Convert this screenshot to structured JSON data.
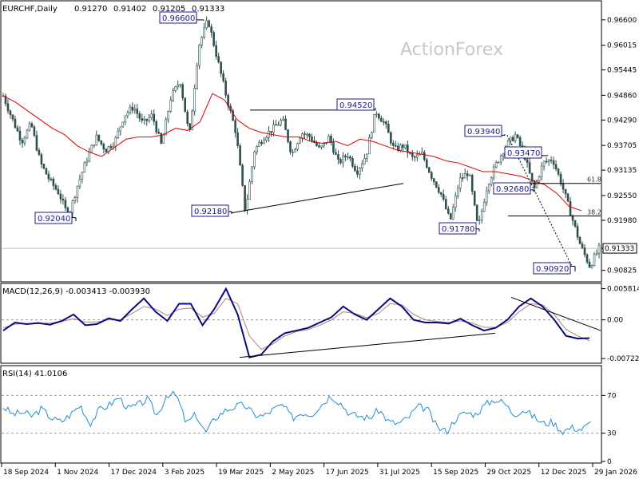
{
  "header": {
    "symbol": "EURCHF,Daily",
    "open": "0.91270",
    "high": "0.91402",
    "low": "0.91205",
    "close": "0.91333"
  },
  "watermark": "ActionForex",
  "colors": {
    "candle": "#2f4f4f",
    "ma": "#e00000",
    "macd": "#0a0a80",
    "signal": "#b08080",
    "rsi": "#1f8fd0",
    "box_border": "#1a1a8c",
    "frame": "#000000"
  },
  "chart_data": [
    {
      "type": "candlestick",
      "title": "EURCHF,Daily",
      "x_labels": [
        "18 Sep 2024",
        "1 Nov 2024",
        "17 Dec 2024",
        "3 Feb 2025",
        "19 Mar 2025",
        "2 May 2025",
        "17 Jun 2025",
        "31 Jul 2025",
        "15 Sep 2025",
        "29 Oct 2025",
        "12 Dec 2025",
        "29 Jan 2026"
      ],
      "y_ticks": [
        "0.96600",
        "0.96015",
        "0.95445",
        "0.94860",
        "0.94290",
        "0.93705",
        "0.93135",
        "0.92550",
        "0.91980",
        "0.91333",
        "0.90825"
      ],
      "ylim": [
        0.9058,
        0.9702
      ],
      "current_price": "0.91333",
      "series": [
        {
          "name": "price",
          "values": [
            0.9485,
            0.943,
            0.938,
            0.942,
            0.933,
            0.929,
            0.926,
            0.9205,
            0.928,
            0.934,
            0.939,
            0.936,
            0.938,
            0.944,
            0.946,
            0.942,
            0.944,
            0.937,
            0.948,
            0.952,
            0.939,
            0.96,
            0.966,
            0.957,
            0.948,
            0.94,
            0.9218,
            0.936,
            0.939,
            0.941,
            0.943,
            0.935,
            0.94,
            0.939,
            0.936,
            0.939,
            0.933,
            0.935,
            0.931,
            0.935,
            0.945,
            0.942,
            0.936,
            0.937,
            0.934,
            0.935,
            0.93,
            0.926,
            0.9195,
            0.929,
            0.931,
            0.9178,
            0.928,
            0.933,
            0.937,
            0.9394,
            0.9347,
            0.9268,
            0.933,
            0.934,
            0.928,
            0.921,
            0.914,
            0.9092,
            0.9133
          ]
        },
        {
          "name": "MA",
          "values": [
            0.9485,
            0.947,
            0.945,
            0.943,
            0.941,
            0.9395,
            0.937,
            0.9355,
            0.9345,
            0.9365,
            0.9385,
            0.939,
            0.939,
            0.9395,
            0.941,
            0.9405,
            0.9425,
            0.949,
            0.9475,
            0.943,
            0.941,
            0.94,
            0.9395,
            0.939,
            0.939,
            0.938,
            0.9375,
            0.938,
            0.937,
            0.9385,
            0.938,
            0.937,
            0.936,
            0.9355,
            0.935,
            0.9345,
            0.9335,
            0.933,
            0.932,
            0.931,
            0.931,
            0.9305,
            0.93,
            0.929,
            0.928,
            0.926,
            0.923,
            0.922
          ]
        }
      ],
      "annotations": [
        {
          "label": "0.96600",
          "price": 0.966
        },
        {
          "label": "0.92040",
          "price": 0.9204
        },
        {
          "label": "0.92180",
          "price": 0.9218
        },
        {
          "label": "0.94520",
          "price": 0.9452
        },
        {
          "label": "0.93940",
          "price": 0.9394
        },
        {
          "label": "0.93470",
          "price": 0.9347
        },
        {
          "label": "0.92680",
          "price": 0.9268
        },
        {
          "label": "0.91780",
          "price": 0.9178
        },
        {
          "label": "0.90920",
          "price": 0.9092
        }
      ],
      "fib_levels": [
        {
          "label": "61.8",
          "price": 0.9283
        },
        {
          "label": "38.2",
          "price": 0.9208
        }
      ]
    },
    {
      "type": "line",
      "title": "MACD(12,26,9) -0.003413 -0.003930",
      "y_ticks": [
        "0.005814",
        "0.00",
        "-0.007222"
      ],
      "ylim": [
        -0.0078,
        0.0065
      ],
      "series": [
        {
          "name": "MACD",
          "values": [
            -0.002,
            -0.0005,
            -0.0008,
            -0.0006,
            -0.0009,
            -0.0002,
            0.001,
            -0.001,
            -0.0008,
            0.0003,
            -0.0002,
            0.002,
            0.004,
            0.0015,
            -0.0002,
            0.003,
            0.003,
            -0.001,
            0.002,
            0.0058,
            0.001,
            -0.007,
            -0.0065,
            -0.004,
            -0.0025,
            -0.002,
            -0.0015,
            -0.0005,
            0.0005,
            0.0025,
            0.001,
            0.0,
            0.002,
            0.004,
            0.0025,
            0.0,
            -0.0005,
            -0.0005,
            -0.0007,
            0.0002,
            -0.001,
            -0.002,
            -0.0015,
            0.0,
            0.0025,
            0.004,
            0.0025,
            0.0,
            -0.003,
            -0.0035,
            -0.0034
          ]
        },
        {
          "name": "Signal",
          "values": [
            -0.0015,
            -0.0008,
            -0.0007,
            -0.0007,
            -0.0006,
            -0.0003,
            0.0002,
            -0.0004,
            -0.0004,
            0.0,
            0.0,
            0.0012,
            0.0025,
            0.002,
            0.0008,
            0.002,
            0.0022,
            0.0005,
            0.0012,
            0.004,
            0.003,
            -0.003,
            -0.0055,
            -0.0045,
            -0.003,
            -0.0022,
            -0.0018,
            -0.001,
            0.0,
            0.0015,
            0.0012,
            0.0004,
            0.0012,
            0.003,
            0.0028,
            0.001,
            0.0,
            -0.0003,
            -0.0005,
            -0.0002,
            -0.0006,
            -0.0014,
            -0.0014,
            -0.0005,
            0.0015,
            0.003,
            0.0028,
            0.001,
            -0.0018,
            -0.003,
            -0.0039
          ]
        }
      ]
    },
    {
      "type": "line",
      "title": "RSI(14) 41.0106",
      "y_ticks": [
        "70",
        "30",
        "0"
      ],
      "ylim": [
        0,
        100
      ],
      "series": [
        {
          "name": "RSI",
          "values": [
            58,
            50,
            52,
            48,
            56,
            46,
            42,
            50,
            60,
            40,
            55,
            60,
            68,
            56,
            60,
            66,
            48,
            72,
            70,
            40,
            50,
            30,
            46,
            54,
            58,
            60,
            50,
            48,
            55,
            60,
            46,
            52,
            50,
            60,
            70,
            62,
            50,
            48,
            46,
            55,
            42,
            40,
            46,
            58,
            56,
            36,
            32,
            46,
            52,
            50,
            60,
            66,
            62,
            50,
            55,
            48,
            40,
            42,
            32,
            36,
            34,
            41
          ]
        }
      ]
    }
  ]
}
